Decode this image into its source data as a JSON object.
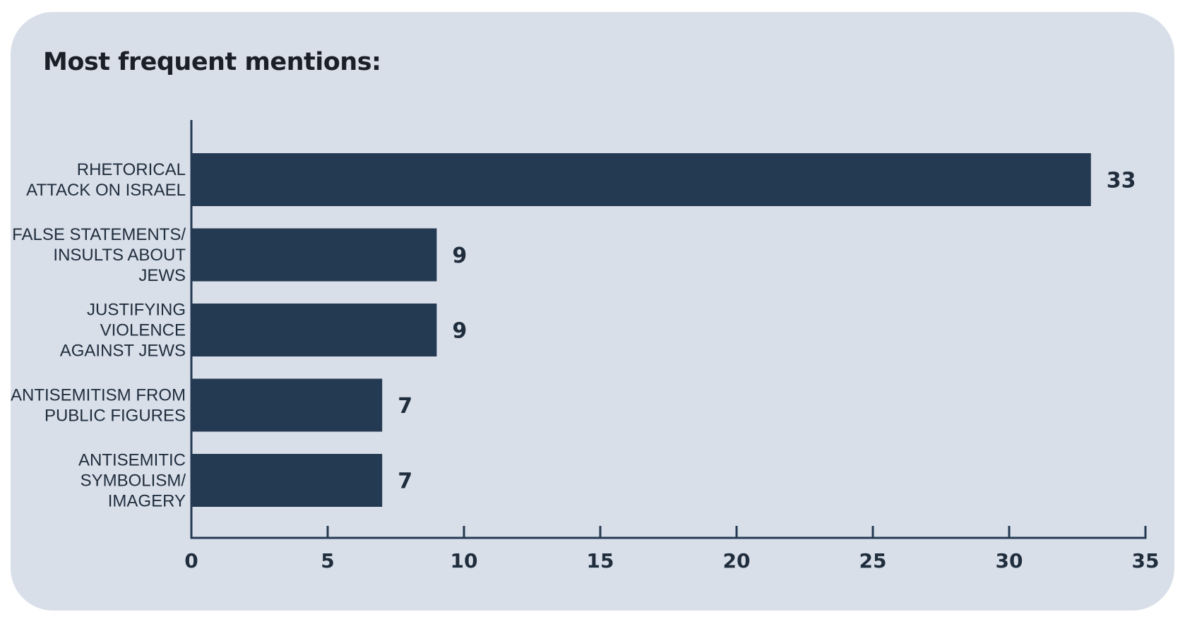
{
  "chart_data": {
    "type": "bar",
    "orientation": "horizontal",
    "title": "Most frequent mentions:",
    "xlabel": "",
    "ylabel": "",
    "categories": [
      [
        "RHETORICAL",
        "ATTACK ON ISRAEL"
      ],
      [
        "FALSE STATEMENTS/",
        "INSULTS ABOUT",
        "JEWS"
      ],
      [
        "JUSTIFYING",
        "VIOLENCE",
        "AGAINST JEWS"
      ],
      [
        "ANTISEMITISM FROM",
        "PUBLIC FIGURES"
      ],
      [
        "ANTISEMITIC",
        "SYMBOLISM/",
        "IMAGERY"
      ]
    ],
    "values": [
      33,
      9,
      9,
      7,
      7
    ],
    "data_labels": [
      "33",
      "9",
      "9",
      "7",
      "7"
    ],
    "xlim": [
      0,
      35
    ],
    "xticks": [
      0,
      5,
      10,
      15,
      20,
      25,
      30,
      35
    ],
    "xtick_labels": [
      "0",
      "5",
      "10",
      "15",
      "20",
      "25",
      "30",
      "35"
    ],
    "grid": false,
    "legend": "none",
    "colors": {
      "bar": "#243a52",
      "axis": "#243a52",
      "text": "#1f2d3d",
      "background": "#d9dfe9"
    }
  }
}
